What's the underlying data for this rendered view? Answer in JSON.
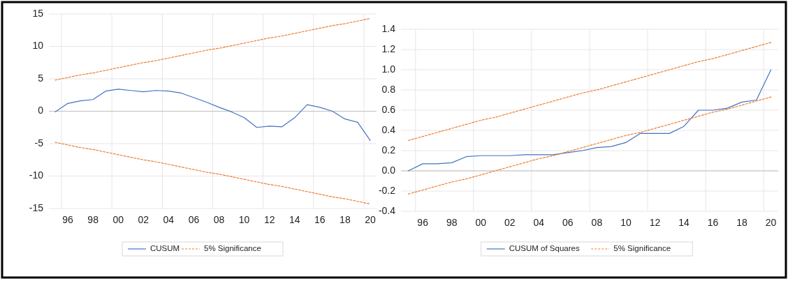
{
  "chart_data": [
    {
      "type": "line",
      "ylim": [
        -15,
        15
      ],
      "yticks": [
        -15,
        -10,
        -5,
        0,
        5,
        10,
        15
      ],
      "categories": [
        null,
        "96",
        null,
        "98",
        null,
        "00",
        null,
        "02",
        null,
        "04",
        null,
        "06",
        null,
        "08",
        null,
        "10",
        null,
        "12",
        null,
        "14",
        null,
        "16",
        null,
        "18",
        null,
        "20"
      ],
      "grid": true,
      "legend": "bottom",
      "series": [
        {
          "name": "CUSUM",
          "color": "#4472c4",
          "line_style": "solid",
          "values": [
            -0.1,
            1.2,
            1.6,
            1.8,
            3.1,
            3.4,
            3.2,
            3.0,
            3.2,
            3.1,
            2.8,
            2.1,
            1.4,
            0.6,
            -0.1,
            -1.0,
            -2.5,
            -2.3,
            -2.4,
            -1.0,
            1.0,
            0.6,
            0.0,
            -1.2,
            -1.7,
            -4.5
          ]
        },
        {
          "name": "5% Significance",
          "color": "#ed7d31",
          "line_style": "dashed",
          "values": [
            4.8,
            5.2,
            5.6,
            5.9,
            6.3,
            6.7,
            7.1,
            7.5,
            7.8,
            8.2,
            8.6,
            9.0,
            9.4,
            9.7,
            10.1,
            10.5,
            10.9,
            11.3,
            11.6,
            12.0,
            12.4,
            12.8,
            13.2,
            13.5,
            13.9,
            14.3
          ]
        },
        {
          "color": "#ed7d31",
          "line_style": "dashed",
          "values": [
            -4.8,
            -5.2,
            -5.6,
            -5.9,
            -6.3,
            -6.7,
            -7.1,
            -7.5,
            -7.8,
            -8.2,
            -8.6,
            -9.0,
            -9.4,
            -9.7,
            -10.1,
            -10.5,
            -10.9,
            -11.3,
            -11.6,
            -12.0,
            -12.4,
            -12.8,
            -13.2,
            -13.5,
            -13.9,
            -14.3
          ]
        }
      ]
    },
    {
      "type": "line",
      "ylim": [
        -0.4,
        1.4
      ],
      "yticks": [
        {
          "value": -0.4,
          "label": "-0.4"
        },
        {
          "value": -0.2,
          "label": "-0.2"
        },
        {
          "value": 0,
          "label": "0.0"
        },
        {
          "value": 0.2,
          "label": "0.2"
        },
        {
          "value": 0.4,
          "label": "0.4"
        },
        {
          "value": 0.6,
          "label": "0.6"
        },
        {
          "value": 0.8,
          "label": "0.8"
        },
        {
          "value": 1,
          "label": "1.0"
        },
        {
          "value": 1.2,
          "label": "1.2"
        },
        {
          "value": 1.4,
          "label": "1.4"
        }
      ],
      "categories": [
        null,
        "96",
        null,
        "98",
        null,
        "00",
        null,
        "02",
        null,
        "04",
        null,
        "06",
        null,
        "08",
        null,
        "10",
        null,
        "12",
        null,
        "14",
        null,
        "16",
        null,
        "18",
        null,
        "20"
      ],
      "grid": true,
      "legend": "bottom",
      "series": [
        {
          "name": "CUSUM of Squares",
          "color": "#4472c4",
          "line_style": "solid",
          "values": [
            0,
            0.07,
            0.07,
            0.08,
            0.14,
            0.15,
            0.15,
            0.15,
            0.16,
            0.16,
            0.16,
            0.18,
            0.2,
            0.23,
            0.24,
            0.28,
            0.37,
            0.37,
            0.37,
            0.44,
            0.6,
            0.6,
            0.62,
            0.68,
            0.7,
            1.0
          ]
        },
        {
          "name": "5% Significance",
          "color": "#ed7d31",
          "line_style": "dashed",
          "values": [
            0.3,
            0.34,
            0.38,
            0.42,
            0.46,
            0.5,
            0.53,
            0.57,
            0.61,
            0.65,
            0.69,
            0.73,
            0.77,
            0.8,
            0.84,
            0.88,
            0.92,
            0.96,
            1.0,
            1.04,
            1.08,
            1.11,
            1.15,
            1.19,
            1.23,
            1.27
          ]
        },
        {
          "color": "#ed7d31",
          "line_style": "dashed",
          "values": [
            -0.23,
            -0.19,
            -0.15,
            -0.11,
            -0.08,
            -0.04,
            0,
            0.04,
            0.08,
            0.12,
            0.15,
            0.19,
            0.23,
            0.27,
            0.31,
            0.35,
            0.38,
            0.42,
            0.46,
            0.5,
            0.54,
            0.58,
            0.61,
            0.65,
            0.69,
            0.73
          ]
        }
      ]
    }
  ]
}
